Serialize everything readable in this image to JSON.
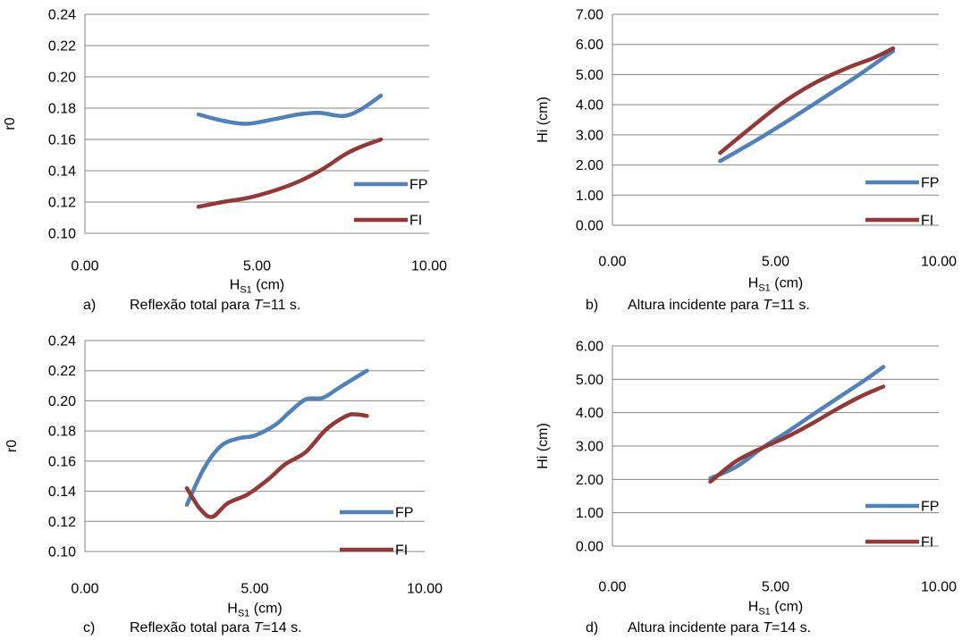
{
  "chart_data": [
    {
      "type": "line",
      "id": "a",
      "ylabel": "r0",
      "xlabel_main": "H",
      "xlabel_sub": "S1",
      "xlabel_unit": " (cm)",
      "xlim": [
        0,
        10
      ],
      "ylim": [
        0.1,
        0.24
      ],
      "ystep": 0.02,
      "xticks": [
        "0.00",
        "5.00",
        "10.00"
      ],
      "yticks": [
        "0.10",
        "0.12",
        "0.14",
        "0.16",
        "0.18",
        "0.20",
        "0.22",
        "0.24"
      ],
      "grid": true,
      "legend": "right",
      "series": [
        {
          "name": "FP",
          "color": "#4F81BD",
          "points": [
            [
              3.3,
              0.176
            ],
            [
              4.0,
              0.172
            ],
            [
              4.7,
              0.17
            ],
            [
              5.5,
              0.173
            ],
            [
              6.2,
              0.176
            ],
            [
              6.8,
              0.177
            ],
            [
              7.5,
              0.175
            ],
            [
              8.0,
              0.179
            ],
            [
              8.6,
              0.188
            ]
          ]
        },
        {
          "name": "FI",
          "color": "#953735",
          "points": [
            [
              3.3,
              0.117
            ],
            [
              4.0,
              0.12
            ],
            [
              4.8,
              0.123
            ],
            [
              5.6,
              0.128
            ],
            [
              6.3,
              0.134
            ],
            [
              6.9,
              0.141
            ],
            [
              7.6,
              0.151
            ],
            [
              8.1,
              0.156
            ],
            [
              8.6,
              0.16
            ]
          ]
        }
      ],
      "caption_letter": "a)",
      "caption_pre": "Reflexão total para ",
      "caption_var": "T",
      "caption_post": "=11 s."
    },
    {
      "type": "line",
      "id": "b",
      "ylabel": "Hi (cm)",
      "xlabel_main": "H",
      "xlabel_sub": "S1",
      "xlabel_unit": " (cm)",
      "xlim": [
        0,
        10
      ],
      "ylim": [
        0,
        7
      ],
      "ystep": 1,
      "xticks": [
        "0.00",
        "5.00",
        "10.00"
      ],
      "yticks": [
        "0.00",
        "1.00",
        "2.00",
        "3.00",
        "4.00",
        "5.00",
        "6.00",
        "7.00"
      ],
      "grid": true,
      "legend": "right",
      "series": [
        {
          "name": "FP",
          "color": "#4F81BD",
          "points": [
            [
              3.3,
              2.13
            ],
            [
              4.5,
              2.88
            ],
            [
              5.5,
              3.55
            ],
            [
              6.5,
              4.25
            ],
            [
              7.5,
              4.95
            ],
            [
              8.6,
              5.78
            ]
          ]
        },
        {
          "name": "FI",
          "color": "#953735",
          "points": [
            [
              3.3,
              2.4
            ],
            [
              4.2,
              3.2
            ],
            [
              5.2,
              4.05
            ],
            [
              6.2,
              4.72
            ],
            [
              7.2,
              5.22
            ],
            [
              8.0,
              5.55
            ],
            [
              8.6,
              5.87
            ]
          ]
        }
      ],
      "caption_letter": "b)",
      "caption_pre": "Altura incidente para ",
      "caption_var": "T",
      "caption_post": "=11 s."
    },
    {
      "type": "line",
      "id": "c",
      "ylabel": "r0",
      "xlabel_main": "H",
      "xlabel_sub": "S1",
      "xlabel_unit": " (cm)",
      "xlim": [
        0,
        10
      ],
      "ylim": [
        0.1,
        0.24
      ],
      "ystep": 0.02,
      "xticks": [
        "0.00",
        "5.00",
        "10.00"
      ],
      "yticks": [
        "0.10",
        "0.12",
        "0.14",
        "0.16",
        "0.18",
        "0.20",
        "0.22",
        "0.24"
      ],
      "grid": true,
      "legend": "right",
      "series": [
        {
          "name": "FP",
          "color": "#4F81BD",
          "points": [
            [
              3.0,
              0.131
            ],
            [
              3.5,
              0.155
            ],
            [
              4.0,
              0.17
            ],
            [
              4.5,
              0.175
            ],
            [
              5.0,
              0.177
            ],
            [
              5.6,
              0.184
            ],
            [
              6.0,
              0.192
            ],
            [
              6.5,
              0.201
            ],
            [
              7.0,
              0.202
            ],
            [
              7.5,
              0.209
            ],
            [
              8.3,
              0.22
            ]
          ]
        },
        {
          "name": "FI",
          "color": "#953735",
          "points": [
            [
              3.0,
              0.142
            ],
            [
              3.4,
              0.128
            ],
            [
              3.75,
              0.123
            ],
            [
              4.2,
              0.132
            ],
            [
              4.8,
              0.138
            ],
            [
              5.4,
              0.148
            ],
            [
              5.9,
              0.158
            ],
            [
              6.5,
              0.166
            ],
            [
              7.1,
              0.181
            ],
            [
              7.7,
              0.19
            ],
            [
              8.0,
              0.191
            ],
            [
              8.3,
              0.19
            ]
          ]
        }
      ],
      "caption_letter": "c)",
      "caption_pre": "Reflexão total para ",
      "caption_var": "T",
      "caption_post": "=14 s."
    },
    {
      "type": "line",
      "id": "d",
      "ylabel": "Hi (cm)",
      "xlabel_main": "H",
      "xlabel_sub": "S1",
      "xlabel_unit": " (cm)",
      "xlim": [
        0,
        10
      ],
      "ylim": [
        0,
        6
      ],
      "ystep": 1,
      "xticks": [
        "0.00",
        "5.00",
        "10.00"
      ],
      "yticks": [
        "0.00",
        "1.00",
        "2.00",
        "3.00",
        "4.00",
        "5.00",
        "6.00"
      ],
      "grid": true,
      "legend": "right",
      "series": [
        {
          "name": "FP",
          "color": "#4F81BD",
          "points": [
            [
              3.0,
              2.03
            ],
            [
              3.8,
              2.38
            ],
            [
              4.6,
              2.95
            ],
            [
              5.4,
              3.45
            ],
            [
              6.2,
              3.98
            ],
            [
              7.0,
              4.5
            ],
            [
              7.7,
              4.95
            ],
            [
              8.3,
              5.37
            ]
          ]
        },
        {
          "name": "FI",
          "color": "#953735",
          "points": [
            [
              3.0,
              1.93
            ],
            [
              3.8,
              2.55
            ],
            [
              4.6,
              2.95
            ],
            [
              5.4,
              3.3
            ],
            [
              6.2,
              3.72
            ],
            [
              6.9,
              4.12
            ],
            [
              7.6,
              4.48
            ],
            [
              8.3,
              4.78
            ]
          ]
        }
      ],
      "caption_letter": "d)",
      "caption_pre": "Altura incidente para ",
      "caption_var": "T",
      "caption_post": "=14 s."
    }
  ]
}
